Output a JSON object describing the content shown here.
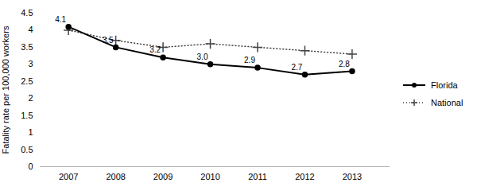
{
  "chart_data": {
    "type": "line",
    "x": [
      2007,
      2008,
      2009,
      2010,
      2011,
      2012,
      2013
    ],
    "series": [
      {
        "name": "Florida",
        "color": "#000000",
        "marker": "circle",
        "line_style": "solid",
        "values": [
          4.1,
          3.5,
          3.2,
          3.0,
          2.9,
          2.7,
          2.8
        ],
        "data_labels": true,
        "value_labels": [
          "4.1",
          "3.5",
          "3.2",
          "3.0",
          "2.9",
          "2.7",
          "2.8"
        ]
      },
      {
        "name": "National",
        "color": "#444444",
        "marker": "plus",
        "line_style": "dotted",
        "values": [
          4.0,
          3.7,
          3.5,
          3.6,
          3.5,
          3.4,
          3.3
        ]
      }
    ],
    "xlim": [
      2006.4,
      2013.8
    ],
    "xticks": [
      2007,
      2008,
      2009,
      2010,
      2011,
      2012,
      2013
    ],
    "ylim": [
      0,
      4.5
    ],
    "yticks": [
      0,
      0.5,
      1,
      1.5,
      2,
      2.5,
      3,
      3.5,
      4,
      4.5
    ],
    "ylabel": "Fatality rate per 100,000 workers",
    "grid": false,
    "legend": "right"
  }
}
